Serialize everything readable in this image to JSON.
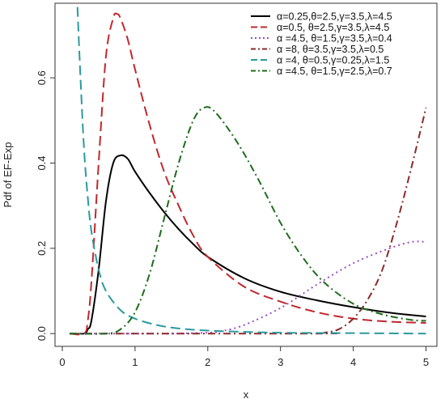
{
  "chart_data": {
    "type": "line",
    "title": "",
    "xlabel": "x",
    "ylabel": "Pdf of EF-Exp",
    "xlim": [
      0,
      5
    ],
    "ylim": [
      0,
      0.8
    ],
    "x_ticks": [
      "0",
      "1",
      "2",
      "3",
      "4",
      "5"
    ],
    "y_ticks": [
      "0.0",
      "0.2",
      "0.4",
      "0.6"
    ],
    "grid": false,
    "legend_position": "top-right",
    "series": [
      {
        "name": "α=0.25,θ=2.5,γ=3.5,λ=4.5",
        "color": "#000000",
        "dash": "solid",
        "x": [
          0.1,
          0.3,
          0.35,
          0.4,
          0.5,
          0.6,
          0.7,
          0.8,
          0.9,
          1.0,
          1.2,
          1.4,
          1.6,
          1.8,
          2.0,
          2.5,
          3.0,
          3.5,
          4.0,
          4.5,
          5.0
        ],
        "y": [
          0,
          0.0,
          0.01,
          0.03,
          0.15,
          0.31,
          0.4,
          0.418,
          0.41,
          0.38,
          0.33,
          0.285,
          0.245,
          0.21,
          0.18,
          0.13,
          0.098,
          0.078,
          0.062,
          0.049,
          0.04
        ]
      },
      {
        "name": "α=0.5, θ=2.5,γ=3.5,λ=4.5",
        "color": "#c0282d",
        "dash": "longdash",
        "x": [
          0.1,
          0.3,
          0.35,
          0.4,
          0.5,
          0.6,
          0.7,
          0.75,
          0.8,
          0.9,
          1.0,
          1.2,
          1.4,
          1.6,
          1.8,
          2.0,
          2.5,
          3.0,
          3.5,
          4.0,
          4.5,
          5.0
        ],
        "y": [
          0,
          0.0,
          0.03,
          0.12,
          0.4,
          0.65,
          0.74,
          0.75,
          0.74,
          0.69,
          0.62,
          0.49,
          0.38,
          0.3,
          0.23,
          0.18,
          0.11,
          0.075,
          0.05,
          0.035,
          0.028,
          0.025
        ]
      },
      {
        "name": "α =4.5, θ=1.5,γ=3.5,λ=0.4",
        "color": "#9b4fc2",
        "dash": "dotted",
        "x": [
          0.1,
          1.0,
          1.5,
          2.0,
          2.2,
          2.5,
          3.0,
          3.5,
          4.0,
          4.5,
          4.8,
          5.0
        ],
        "y": [
          0,
          0,
          0.0,
          0.002,
          0.006,
          0.02,
          0.06,
          0.115,
          0.165,
          0.2,
          0.215,
          0.215
        ]
      },
      {
        "name": "α =8, θ=3.5,γ=3.5,λ=0.5",
        "color": "#8b2a2a",
        "dash": "dashdot",
        "x": [
          0.1,
          3.5,
          3.6,
          3.8,
          4.0,
          4.2,
          4.4,
          4.6,
          4.8,
          5.0
        ],
        "y": [
          0,
          0,
          0.002,
          0.01,
          0.035,
          0.08,
          0.15,
          0.26,
          0.39,
          0.53
        ]
      },
      {
        "name": "α =4, θ=0.5,γ=0.25,λ=1.5",
        "color": "#2a9a9e",
        "dash": "longdash",
        "x": [
          0.2,
          0.25,
          0.3,
          0.35,
          0.4,
          0.5,
          0.6,
          0.8,
          1.0,
          1.3,
          1.6,
          2.0,
          2.5,
          3.0,
          4.0,
          5.0
        ],
        "y": [
          0.8,
          0.6,
          0.43,
          0.32,
          0.24,
          0.15,
          0.1,
          0.055,
          0.035,
          0.02,
          0.012,
          0.007,
          0.004,
          0.002,
          0.001,
          0.0
        ]
      },
      {
        "name": "α =4.5, θ=1.5,γ=2.5,λ=0.7",
        "color": "#1e6b1e",
        "dash": "dashdot",
        "x": [
          0.1,
          0.6,
          0.8,
          1.0,
          1.2,
          1.4,
          1.6,
          1.8,
          1.95,
          2.1,
          2.4,
          2.7,
          3.0,
          3.3,
          3.6,
          4.0,
          4.4,
          4.8,
          5.0
        ],
        "y": [
          0,
          0.0,
          0.01,
          0.05,
          0.14,
          0.27,
          0.4,
          0.5,
          0.53,
          0.52,
          0.45,
          0.36,
          0.26,
          0.18,
          0.12,
          0.07,
          0.045,
          0.032,
          0.03
        ]
      }
    ]
  }
}
